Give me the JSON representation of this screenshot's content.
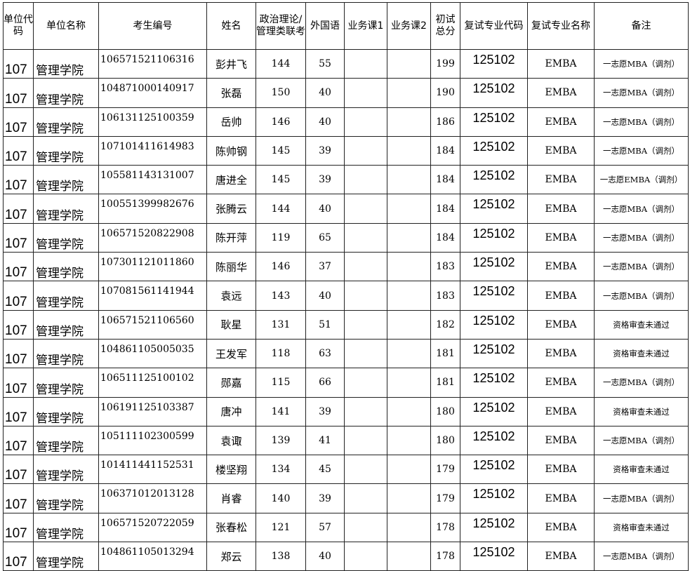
{
  "headers": [
    "单位代码",
    "单位名称",
    "考生编号",
    "姓名",
    "政治理论/管理类联考",
    "外国语",
    "业务课1",
    "业务课2",
    "初试总分",
    "复试专业代码",
    "复试专业名称",
    "备注"
  ],
  "rows": [
    [
      "107",
      "管理学院",
      "106571521106316",
      "彭井飞",
      "144",
      "55",
      "",
      "",
      "199",
      "125102",
      "EMBA",
      "一志愿MBA（调剂）"
    ],
    [
      "107",
      "管理学院",
      "104871000140917",
      "张磊",
      "150",
      "40",
      "",
      "",
      "190",
      "125102",
      "EMBA",
      "一志愿MBA（调剂）"
    ],
    [
      "107",
      "管理学院",
      "106131125100359",
      "岳帅",
      "146",
      "40",
      "",
      "",
      "186",
      "125102",
      "EMBA",
      "一志愿MBA（调剂）"
    ],
    [
      "107",
      "管理学院",
      "107101411614983",
      "陈帅钢",
      "145",
      "39",
      "",
      "",
      "184",
      "125102",
      "EMBA",
      "一志愿MBA（调剂）"
    ],
    [
      "107",
      "管理学院",
      "105581143131007",
      "唐进全",
      "145",
      "39",
      "",
      "",
      "184",
      "125102",
      "EMBA",
      "一志愿EMBA（调剂）"
    ],
    [
      "107",
      "管理学院",
      "100551399982676",
      "张腾云",
      "144",
      "40",
      "",
      "",
      "184",
      "125102",
      "EMBA",
      "一志愿MBA（调剂）"
    ],
    [
      "107",
      "管理学院",
      "106571520822908",
      "陈开萍",
      "119",
      "65",
      "",
      "",
      "184",
      "125102",
      "EMBA",
      "一志愿MBA（调剂）"
    ],
    [
      "107",
      "管理学院",
      "107301121011860",
      "陈丽华",
      "146",
      "37",
      "",
      "",
      "183",
      "125102",
      "EMBA",
      "一志愿MBA（调剂）"
    ],
    [
      "107",
      "管理学院",
      "107081561141944",
      "袁远",
      "143",
      "40",
      "",
      "",
      "183",
      "125102",
      "EMBA",
      "一志愿MBA（调剂）"
    ],
    [
      "107",
      "管理学院",
      "106571521106560",
      "耿星",
      "131",
      "51",
      "",
      "",
      "182",
      "125102",
      "EMBA",
      "资格审查未通过"
    ],
    [
      "107",
      "管理学院",
      "104861105005035",
      "王发军",
      "118",
      "63",
      "",
      "",
      "181",
      "125102",
      "EMBA",
      "资格审查未通过"
    ],
    [
      "107",
      "管理学院",
      "106511125100102",
      "郧嘉",
      "115",
      "66",
      "",
      "",
      "181",
      "125102",
      "EMBA",
      "一志愿MBA（调剂）"
    ],
    [
      "107",
      "管理学院",
      "106191125103387",
      "唐冲",
      "141",
      "39",
      "",
      "",
      "180",
      "125102",
      "EMBA",
      "资格审查未通过"
    ],
    [
      "107",
      "管理学院",
      "105111102300599",
      "袁诹",
      "139",
      "41",
      "",
      "",
      "180",
      "125102",
      "EMBA",
      "一志愿MBA（调剂）"
    ],
    [
      "107",
      "管理学院",
      "101411441152531",
      "楼坚翔",
      "134",
      "45",
      "",
      "",
      "179",
      "125102",
      "EMBA",
      "资格审查未通过"
    ],
    [
      "107",
      "管理学院",
      "106371012013128",
      "肖睿",
      "140",
      "39",
      "",
      "",
      "179",
      "125102",
      "EMBA",
      "一志愿MBA（调剂）"
    ],
    [
      "107",
      "管理学院",
      "106571520722059",
      "张春松",
      "121",
      "57",
      "",
      "",
      "178",
      "125102",
      "EMBA",
      "资格审查未通过"
    ],
    [
      "107",
      "管理学院",
      "104861105013294",
      "郑云",
      "138",
      "40",
      "",
      "",
      "178",
      "125102",
      "EMBA",
      "一志愿MBA（调剂）"
    ]
  ]
}
